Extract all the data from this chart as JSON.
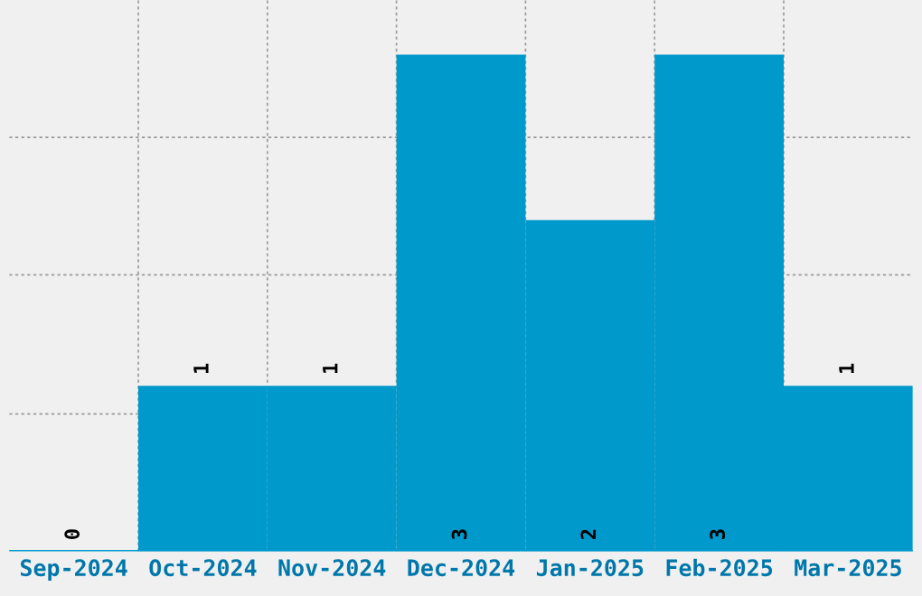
{
  "chart_data": {
    "type": "bar",
    "categories": [
      "Sep-2024",
      "Oct-2024",
      "Nov-2024",
      "Dec-2024",
      "Jan-2025",
      "Feb-2025",
      "Mar-2025"
    ],
    "values": [
      0,
      1,
      1,
      3,
      2,
      3,
      1
    ],
    "color": "#0099cc",
    "data_labels": true,
    "relative": false,
    "ylim": [
      0,
      3.33
    ],
    "yticks": [
      {
        "value": 0.83,
        "label": null
      },
      {
        "value": 1.67,
        "label": null
      },
      {
        "value": 2.5,
        "label": null
      }
    ],
    "grid": true
  }
}
